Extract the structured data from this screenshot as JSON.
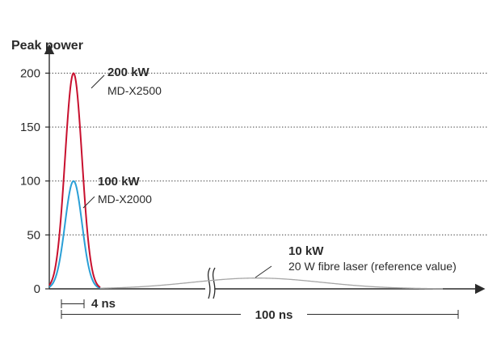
{
  "chart_data": {
    "type": "line",
    "ylabel": "Peak power",
    "yticks": [
      0,
      50,
      100,
      150,
      200
    ],
    "ylim": [
      0,
      215
    ],
    "grid": "dotted horizontal lines at 50, 100, 150, 200",
    "x_axis": "time (not numbered; broken axis)",
    "series": [
      {
        "name": "MD-X2500",
        "peak": 200,
        "color": "#c8102e"
      },
      {
        "name": "MD-X2000",
        "peak": 100,
        "color": "#2a9fd6"
      },
      {
        "name": "20 W fibre laser (reference value)",
        "peak": 10,
        "color": "#a6a6a6"
      }
    ],
    "annotations": [
      {
        "value": "200 kW",
        "label": "MD-X2500"
      },
      {
        "value": "100 kW",
        "label": "MD-X2000"
      },
      {
        "value": "10 kW",
        "label": "20 W fibre laser (reference value)"
      }
    ],
    "spans": [
      {
        "label": "4 ns"
      },
      {
        "label": "100 ns"
      }
    ]
  }
}
